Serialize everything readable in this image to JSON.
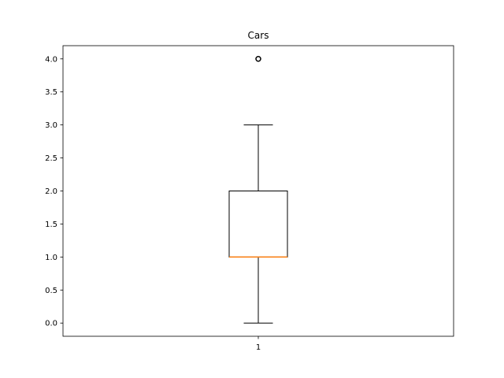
{
  "chart_data": {
    "type": "box",
    "title": "Cars",
    "xlabel": "",
    "ylabel": "",
    "categories": [
      "1"
    ],
    "boxes": [
      {
        "category": "1",
        "whisker_low": 0.0,
        "q1": 1.0,
        "median": 1.0,
        "q3": 2.0,
        "whisker_high": 3.0,
        "outliers": [
          4.0
        ]
      }
    ],
    "ylim": [
      -0.2,
      4.2
    ],
    "yticks": [
      {
        "value": 0.0,
        "label": "0.0"
      },
      {
        "value": 0.5,
        "label": "0.5"
      },
      {
        "value": 1.0,
        "label": "1.0"
      },
      {
        "value": 1.5,
        "label": "1.5"
      },
      {
        "value": 2.0,
        "label": "2.0"
      },
      {
        "value": 2.5,
        "label": "2.5"
      },
      {
        "value": 3.0,
        "label": "3.0"
      },
      {
        "value": 3.5,
        "label": "3.5"
      },
      {
        "value": 4.0,
        "label": "4.0"
      }
    ],
    "grid": false,
    "colors": {
      "box": "#000000",
      "median": "#ff7f0e",
      "whisker": "#000000",
      "outlier": "#000000"
    }
  }
}
